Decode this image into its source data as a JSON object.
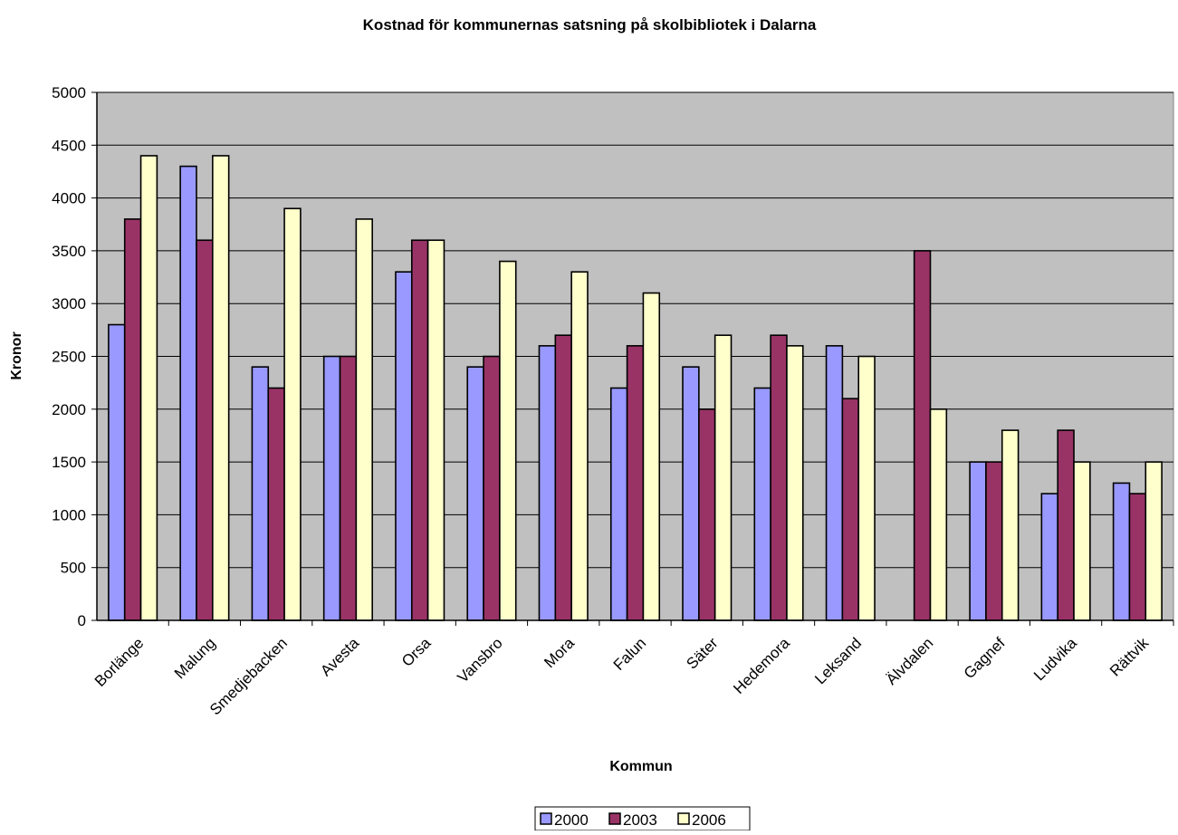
{
  "chart_data": {
    "type": "bar",
    "title": "Kostnad för kommunernas satsning på skolbibliotek i Dalarna",
    "xlabel": "Kommun",
    "ylabel": "Kronor",
    "ylim": [
      0,
      5000
    ],
    "ytick_step": 500,
    "yticks": [
      "0",
      "500",
      "1000",
      "1500",
      "2000",
      "2500",
      "3000",
      "3500",
      "4000",
      "4500",
      "5000"
    ],
    "grid": true,
    "legend_position": "bottom",
    "plot_background": "#c0c0c0",
    "categories": [
      "Borlänge",
      "Malung",
      "Smedjebacken",
      "Avesta",
      "Orsa",
      "Vansbro",
      "Mora",
      "Falun",
      "Säter",
      "Hedemora",
      "Leksand",
      "Älvdalen",
      "Gagnef",
      "Ludvika",
      "Rättvik"
    ],
    "series": [
      {
        "name": "2000",
        "color": "#9999ff",
        "values": [
          2800,
          4300,
          2400,
          2500,
          3300,
          2400,
          2600,
          2200,
          2400,
          2200,
          2600,
          0,
          1500,
          1200,
          1300
        ]
      },
      {
        "name": "2003",
        "color": "#993366",
        "values": [
          3800,
          3600,
          2200,
          2500,
          3600,
          2500,
          2700,
          2600,
          2000,
          2700,
          2100,
          3500,
          1500,
          1800,
          1200
        ]
      },
      {
        "name": "2006",
        "color": "#ffffcc",
        "values": [
          4400,
          4400,
          3900,
          3800,
          3600,
          3400,
          3300,
          3100,
          2700,
          2600,
          2500,
          2000,
          1800,
          1500,
          1500
        ]
      }
    ]
  }
}
